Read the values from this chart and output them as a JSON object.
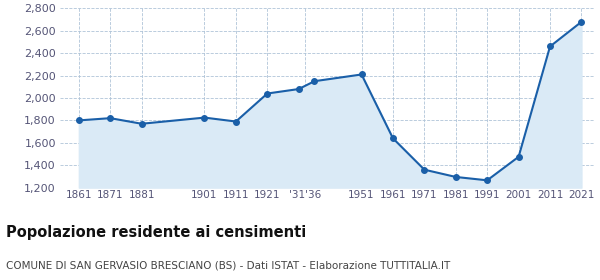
{
  "years": [
    1861,
    1871,
    1881,
    1901,
    1911,
    1921,
    1931,
    1936,
    1951,
    1961,
    1971,
    1981,
    1991,
    2001,
    2011,
    2021
  ],
  "population": [
    1800,
    1820,
    1770,
    1825,
    1790,
    2040,
    2080,
    2150,
    2210,
    1640,
    1360,
    1295,
    1265,
    1475,
    2460,
    2680
  ],
  "line_color": "#1a5fa8",
  "fill_color": "#daeaf6",
  "marker_size": 4,
  "ylim": [
    1200,
    2800
  ],
  "yticks": [
    1200,
    1400,
    1600,
    1800,
    2000,
    2200,
    2400,
    2600,
    2800
  ],
  "title": "Popolazione residente ai censimenti",
  "subtitle": "COMUNE DI SAN GERVASIO BRESCIANO (BS) - Dati ISTAT - Elaborazione TUTTITALIA.IT",
  "title_fontsize": 10.5,
  "subtitle_fontsize": 7.5,
  "background_color": "#ffffff",
  "grid_color": "#b0c4d8",
  "tick_color": "#555577",
  "xlim_left": 1855,
  "xlim_right": 2025
}
